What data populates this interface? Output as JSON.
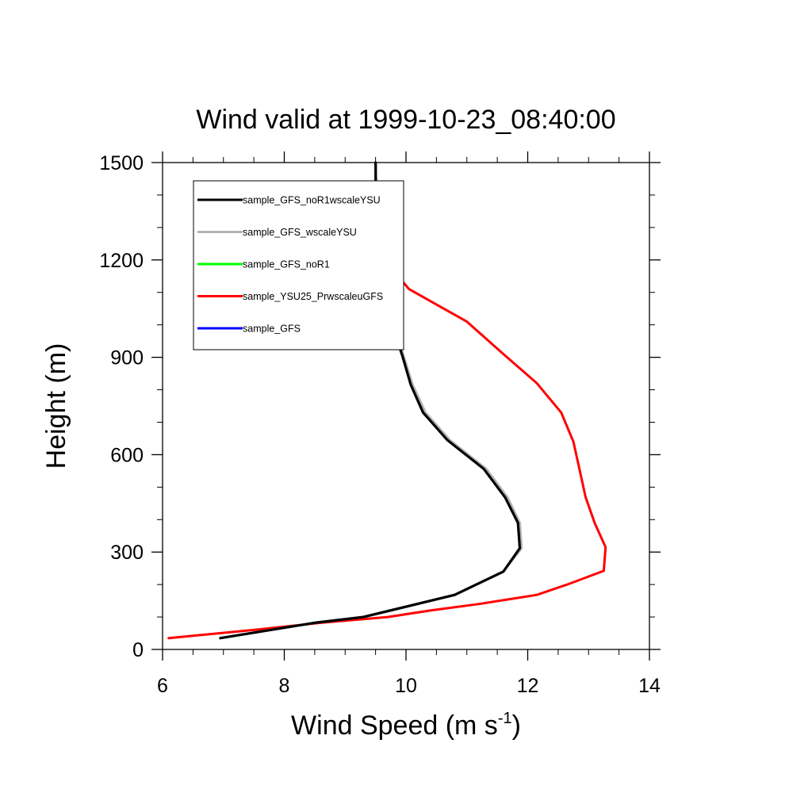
{
  "chart_data": {
    "type": "line",
    "title": "Wind valid at 1999-10-23_08:40:00",
    "xlabel": "Wind Speed (m s",
    "xlabel_sup": "-1",
    "xlabel_end": ")",
    "ylabel": "Height (m)",
    "xlim": [
      6,
      14
    ],
    "ylim": [
      0,
      1500
    ],
    "xticks": [
      6,
      8,
      10,
      12,
      14
    ],
    "xtick_labels": [
      "6",
      "8",
      "10",
      "12",
      "14"
    ],
    "yticks": [
      0,
      300,
      600,
      900,
      1200,
      1500
    ],
    "ytick_labels": [
      "0",
      "300",
      "600",
      "900",
      "1200",
      "1500"
    ],
    "grid": false,
    "legend_position": "top-left",
    "series": [
      {
        "name": "sample_GFS",
        "color": "#0000ff",
        "x": [
          6.95,
          8.5,
          9.3,
          10.8,
          11.6,
          11.88,
          11.85,
          11.65,
          11.3,
          10.7,
          10.3,
          10.1,
          9.95,
          9.8,
          9.65,
          9.58,
          9.54,
          9.52,
          9.5
        ],
        "y": [
          35,
          82,
          100,
          168,
          240,
          312,
          390,
          468,
          556,
          645,
          730,
          815,
          905,
          990,
          1075,
          1160,
          1240,
          1330,
          1500
        ]
      },
      {
        "name": "sample_YSU25_PrwscaleuGFS",
        "color": "#ff0000",
        "x": [
          6.1,
          7.5,
          8.6,
          9.7,
          10.4,
          11.2,
          12.15,
          12.65,
          13.25,
          13.28,
          13.1,
          12.95,
          12.85,
          12.75,
          12.55,
          12.15,
          11.6,
          11.0,
          10.05,
          9.6,
          9.5,
          9.5
        ],
        "y": [
          35,
          60,
          82,
          100,
          120,
          140,
          168,
          200,
          242,
          315,
          390,
          470,
          556,
          640,
          730,
          820,
          910,
          1010,
          1110,
          1210,
          1330,
          1500
        ]
      },
      {
        "name": "sample_GFS_noR1",
        "color": "#00ff00",
        "x": [
          6.95,
          8.5,
          9.3,
          10.8,
          11.6,
          11.87,
          11.84,
          11.63,
          11.28,
          10.68,
          10.28,
          10.08,
          9.94,
          9.79,
          9.64,
          9.57,
          9.53,
          9.51,
          9.5
        ],
        "y": [
          35,
          82,
          100,
          168,
          240,
          312,
          390,
          468,
          556,
          645,
          730,
          815,
          905,
          990,
          1075,
          1160,
          1240,
          1330,
          1500
        ]
      },
      {
        "name": "sample_GFS_wscaleYSU",
        "color": "#b4b4b4",
        "x": [
          6.95,
          8.5,
          9.3,
          10.8,
          11.6,
          11.9,
          11.87,
          11.67,
          11.32,
          10.72,
          10.32,
          10.11,
          9.96,
          9.81,
          9.66,
          9.59,
          9.55,
          9.52,
          9.5
        ],
        "y": [
          35,
          82,
          100,
          168,
          240,
          312,
          390,
          468,
          556,
          645,
          730,
          815,
          905,
          990,
          1075,
          1160,
          1240,
          1330,
          1500
        ]
      },
      {
        "name": "sample_GFS_noR1wscaleYSU",
        "color": "#000000",
        "x": [
          6.95,
          8.5,
          9.3,
          10.8,
          11.6,
          11.87,
          11.84,
          11.63,
          11.28,
          10.68,
          10.28,
          10.08,
          9.94,
          9.79,
          9.64,
          9.57,
          9.53,
          9.51,
          9.5
        ],
        "y": [
          35,
          82,
          100,
          168,
          240,
          312,
          390,
          468,
          556,
          645,
          730,
          815,
          905,
          990,
          1075,
          1160,
          1240,
          1330,
          1500
        ]
      }
    ],
    "legend": [
      {
        "name": "sample_GFS_noR1wscaleYSU",
        "color": "#000000"
      },
      {
        "name": "sample_GFS_wscaleYSU",
        "color": "#b4b4b4"
      },
      {
        "name": "sample_GFS_noR1",
        "color": "#00ff00"
      },
      {
        "name": "sample_YSU25_PrwscaleuGFS",
        "color": "#ff0000"
      },
      {
        "name": "sample_GFS",
        "color": "#0000ff"
      }
    ]
  }
}
